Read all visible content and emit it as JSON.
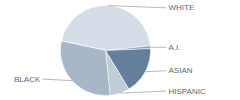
{
  "chart_data": {
    "type": "pie",
    "categories": [
      "WHITE",
      "A.I.",
      "ASIAN",
      "HISPANIC",
      "BLACK"
    ],
    "values": [
      45,
      1,
      17,
      7,
      30
    ],
    "colors": [
      "#d5dde6",
      "#8ea3b8",
      "#647f9a",
      "#c0ccd8",
      "#a8b7c7"
    ]
  }
}
